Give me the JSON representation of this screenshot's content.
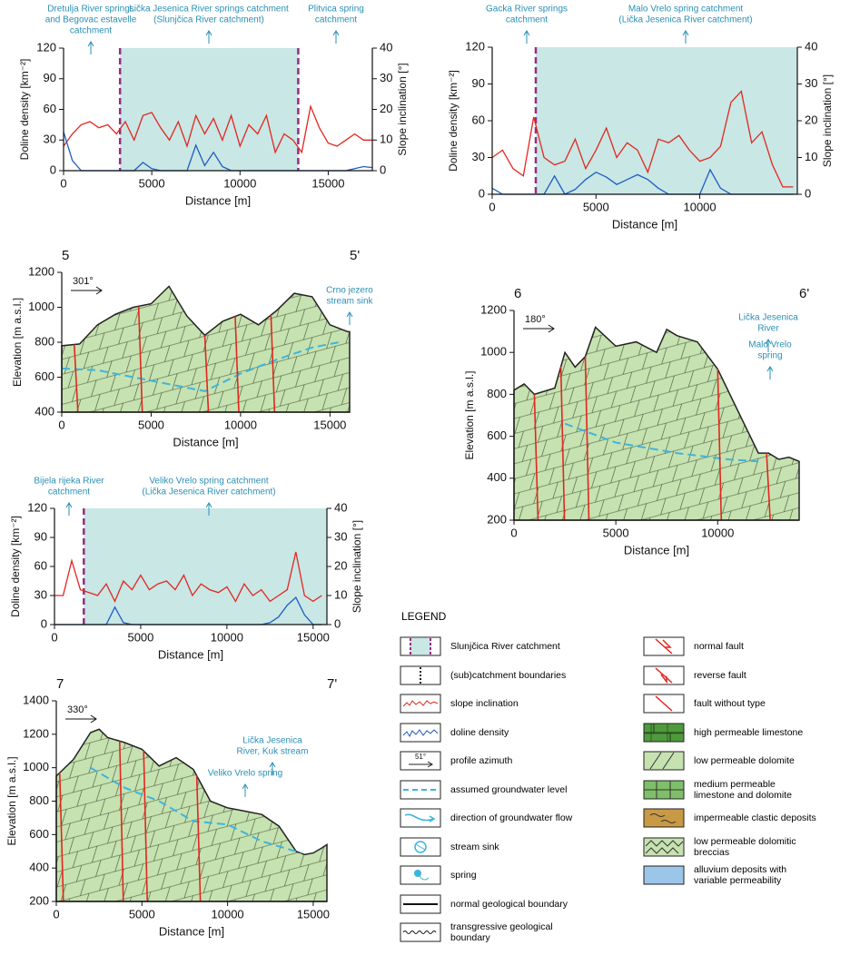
{
  "chart_data": [
    {
      "type": "line",
      "xlabel": "Distance [m]",
      "ylabel": "Doline density [km⁻²]",
      "y2label": "Slope inclination [°]",
      "xlim": [
        0,
        17500
      ],
      "xticks": [
        0,
        5000,
        10000,
        15000
      ],
      "ylim": [
        0,
        120
      ],
      "yticks": [
        0,
        30,
        60,
        90,
        120
      ],
      "y2lim": [
        0,
        40
      ],
      "y2ticks": [
        0,
        10,
        20,
        30,
        40
      ],
      "boundaries": [
        3200,
        13300
      ],
      "annotations": [
        {
          "lines": [
            "Dretulja River springs",
            "and Begovac estavelle",
            "catchment"
          ]
        },
        {
          "lines": [
            "Lička Jesenica River springs catchment",
            "(Slunjčica River catchment)"
          ]
        },
        {
          "lines": [
            "Plitvica spring",
            "catchment"
          ]
        }
      ],
      "series": [
        {
          "color": "#e3261f",
          "axis": "y2",
          "x": [
            0,
            500,
            1000,
            1500,
            2000,
            2500,
            3000,
            3500,
            4000,
            4500,
            5000,
            5500,
            6000,
            6500,
            7000,
            7500,
            8000,
            8500,
            9000,
            9500,
            10000,
            10500,
            11000,
            11500,
            12000,
            12500,
            13000,
            13500,
            14000,
            14500,
            15000,
            15500,
            16000,
            16500,
            17000,
            17500
          ],
          "values": [
            8,
            12,
            15,
            16,
            14,
            15,
            12,
            16,
            10,
            18,
            19,
            14,
            10,
            16,
            8,
            18,
            12,
            17,
            10,
            18,
            8,
            15,
            12,
            18,
            6,
            12,
            10,
            6,
            21,
            14,
            9,
            8,
            10,
            12,
            10,
            10
          ]
        },
        {
          "color": "#1f5cbf",
          "x": [
            0,
            500,
            1000,
            1500,
            2000,
            2500,
            3000,
            3500,
            4000,
            4500,
            5000,
            5500,
            6000,
            6500,
            7000,
            7500,
            8000,
            8500,
            9000,
            9500,
            10000,
            10500,
            11000,
            11500,
            12000,
            12500,
            13000,
            13500,
            14000,
            14500,
            15000,
            15500,
            16000,
            16500,
            17000,
            17500
          ],
          "values": [
            38,
            10,
            0,
            0,
            0,
            0,
            0,
            0,
            0,
            8,
            2,
            0,
            0,
            0,
            0,
            25,
            5,
            18,
            4,
            0,
            0,
            0,
            0,
            0,
            0,
            0,
            0,
            0,
            0,
            0,
            0,
            0,
            0,
            2,
            4,
            3
          ]
        }
      ]
    },
    {
      "type": "line",
      "xlabel": "Distance [m]",
      "ylabel": "Doline density [km⁻²]",
      "y2label": "Slope inclination [°]",
      "xlim": [
        0,
        14700
      ],
      "xticks": [
        0,
        5000,
        10000
      ],
      "ylim": [
        0,
        120
      ],
      "yticks": [
        0,
        30,
        60,
        90,
        120
      ],
      "y2lim": [
        0,
        40
      ],
      "y2ticks": [
        0,
        10,
        20,
        30,
        40
      ],
      "boundaries": [
        2100
      ],
      "annotations": [
        {
          "lines": [
            "Gacka River springs",
            "catchment"
          ]
        },
        {
          "lines": [
            "Malo Vrelo spring catchment",
            "(Lička Jesenica River catchment)"
          ]
        }
      ],
      "series": [
        {
          "color": "#e3261f",
          "axis": "y2",
          "x": [
            0,
            500,
            1000,
            1500,
            2000,
            2500,
            3000,
            3500,
            4000,
            4500,
            5000,
            5500,
            6000,
            6500,
            7000,
            7500,
            8000,
            8500,
            9000,
            9500,
            10000,
            10500,
            11000,
            11500,
            12000,
            12500,
            13000,
            13500,
            14000,
            14500
          ],
          "values": [
            10,
            12,
            7,
            5,
            21,
            10,
            8,
            9,
            15,
            7,
            12,
            18,
            10,
            14,
            12,
            6,
            15,
            14,
            16,
            12,
            9,
            10,
            13,
            25,
            28,
            14,
            17,
            8,
            2,
            2
          ]
        },
        {
          "color": "#1f5cbf",
          "x": [
            0,
            500,
            1000,
            1500,
            2000,
            2500,
            3000,
            3500,
            4000,
            4500,
            5000,
            5500,
            6000,
            6500,
            7000,
            7500,
            8000,
            8500,
            9000,
            9500,
            10000,
            10500,
            11000,
            11500,
            12000,
            12500,
            13000,
            13500,
            14000,
            14500
          ],
          "values": [
            5,
            0,
            0,
            0,
            0,
            0,
            15,
            0,
            4,
            12,
            18,
            14,
            8,
            12,
            16,
            12,
            5,
            0,
            0,
            0,
            0,
            20,
            5,
            0,
            0,
            0,
            0,
            0,
            0,
            0
          ]
        }
      ]
    },
    {
      "type": "area",
      "xlabel": "Distance [m]",
      "ylabel": "Elevation [m a.s.l.]",
      "start_label": "5",
      "end_label": "5'",
      "azimuth": "301°",
      "xlim": [
        0,
        16100
      ],
      "xticks": [
        0,
        5000,
        10000,
        15000
      ],
      "ylim": [
        400,
        1200
      ],
      "yticks": [
        400,
        600,
        800,
        1000,
        1200
      ],
      "faults": [
        700,
        4300,
        8000,
        9700,
        11700
      ],
      "annotations": [
        {
          "lines": [
            "Crno jezero",
            "stream sink"
          ]
        }
      ],
      "series": [
        {
          "color": "#c6e2b0",
          "x": [
            0,
            1000,
            2000,
            3000,
            4000,
            5000,
            6000,
            7000,
            8000,
            9000,
            10000,
            11000,
            12000,
            13000,
            14000,
            15000,
            16000,
            16100
          ],
          "values": [
            780,
            790,
            900,
            960,
            1000,
            1020,
            1120,
            950,
            840,
            920,
            960,
            900,
            980,
            1080,
            1060,
            900,
            860,
            860
          ]
        },
        {
          "color": "#3cb4e0",
          "dashed": true,
          "x": [
            0,
            2000,
            4000,
            6000,
            8000,
            10000,
            12000,
            14000,
            15500
          ],
          "values": [
            650,
            640,
            600,
            560,
            520,
            620,
            700,
            770,
            800
          ]
        }
      ]
    },
    {
      "type": "area",
      "xlabel": "Distance [m]",
      "ylabel": "Elevation [m a.s.l.]",
      "start_label": "6",
      "end_label": "6'",
      "azimuth": "180°",
      "xlim": [
        0,
        14000
      ],
      "xticks": [
        0,
        5000,
        10000
      ],
      "ylim": [
        200,
        1200
      ],
      "yticks": [
        200,
        400,
        600,
        800,
        1000,
        1200
      ],
      "faults": [
        1000,
        2300,
        3500,
        10000,
        12400
      ],
      "annotations": [
        {
          "lines": [
            "Lička Jesenica",
            "River"
          ]
        },
        {
          "lines": [
            "Malo Vrelo",
            "spring"
          ]
        }
      ],
      "series": [
        {
          "color": "#c6e2b0",
          "x": [
            0,
            500,
            1000,
            2000,
            2500,
            3000,
            3500,
            4000,
            5000,
            6000,
            7000,
            7500,
            8000,
            9000,
            10000,
            11000,
            12000,
            12500,
            13000,
            13500,
            14000
          ],
          "values": [
            820,
            850,
            800,
            830,
            1000,
            930,
            980,
            1120,
            1030,
            1050,
            1000,
            1110,
            1080,
            1050,
            920,
            720,
            520,
            520,
            490,
            500,
            480
          ]
        },
        {
          "color": "#3cb4e0",
          "dashed": true,
          "x": [
            2500,
            5000,
            8000,
            10500,
            12000
          ],
          "values": [
            660,
            570,
            520,
            490,
            480
          ]
        }
      ]
    },
    {
      "type": "line",
      "xlabel": "Distance [m]",
      "ylabel": "Doline density [km⁻²]",
      "y2label": "Slope inclination [°]",
      "xlim": [
        0,
        15800
      ],
      "xticks": [
        0,
        5000,
        10000,
        15000
      ],
      "ylim": [
        0,
        120
      ],
      "yticks": [
        0,
        30,
        60,
        90,
        120
      ],
      "y2lim": [
        0,
        40
      ],
      "y2ticks": [
        0,
        10,
        20,
        30,
        40
      ],
      "boundaries": [
        1700
      ],
      "annotations": [
        {
          "lines": [
            "Bijela rijeka River",
            "catchment"
          ]
        },
        {
          "lines": [
            "Veliko Vrelo spring catchment",
            "(Lička Jesenica River catchment)"
          ]
        }
      ],
      "series": [
        {
          "color": "#e3261f",
          "axis": "y2",
          "x": [
            0,
            500,
            1000,
            1500,
            2000,
            2500,
            3000,
            3500,
            4000,
            4500,
            5000,
            5500,
            6000,
            6500,
            7000,
            7500,
            8000,
            8500,
            9000,
            9500,
            10000,
            10500,
            11000,
            11500,
            12000,
            12500,
            13000,
            13500,
            14000,
            14500,
            15000,
            15500
          ],
          "values": [
            10,
            10,
            22,
            12,
            11,
            10,
            14,
            8,
            15,
            12,
            17,
            12,
            14,
            15,
            12,
            17,
            10,
            14,
            12,
            11,
            13,
            8,
            14,
            10,
            12,
            8,
            10,
            12,
            25,
            10,
            8,
            10
          ]
        },
        {
          "color": "#1f5cbf",
          "x": [
            0,
            500,
            1000,
            1500,
            2000,
            2500,
            3000,
            3500,
            4000,
            4500,
            5000,
            5500,
            6000,
            6500,
            7000,
            7500,
            8000,
            8500,
            9000,
            9500,
            10000,
            10500,
            11000,
            11500,
            12000,
            12500,
            13000,
            13500,
            14000,
            14500,
            15000,
            15500
          ],
          "values": [
            0,
            0,
            0,
            0,
            0,
            0,
            0,
            18,
            2,
            0,
            0,
            0,
            0,
            0,
            0,
            0,
            0,
            0,
            0,
            0,
            0,
            0,
            0,
            0,
            0,
            2,
            8,
            20,
            28,
            10,
            0,
            0
          ]
        }
      ]
    },
    {
      "type": "area",
      "xlabel": "Distance [m]",
      "ylabel": "Elevation [m a.s.l.]",
      "start_label": "7",
      "end_label": "7'",
      "azimuth": "330°",
      "xlim": [
        0,
        15800
      ],
      "xticks": [
        0,
        5000,
        10000,
        15000
      ],
      "ylim": [
        200,
        1400
      ],
      "yticks": [
        200,
        400,
        600,
        800,
        1000,
        1200,
        1400
      ],
      "faults": [
        200,
        3700,
        5100,
        8200
      ],
      "annotations": [
        {
          "lines": [
            "Lička Jesenica",
            "River, Kuk stream"
          ]
        },
        {
          "lines": [
            "Veliko Vrelo spring"
          ]
        }
      ],
      "series": [
        {
          "color": "#c6e2b0",
          "x": [
            0,
            1000,
            2000,
            2500,
            3000,
            4000,
            5000,
            6000,
            7000,
            8000,
            9000,
            10000,
            11000,
            12000,
            13000,
            14000,
            14500,
            15000,
            15500,
            15800
          ],
          "values": [
            950,
            1050,
            1210,
            1230,
            1180,
            1150,
            1110,
            1010,
            1060,
            990,
            800,
            760,
            740,
            720,
            650,
            500,
            480,
            490,
            520,
            540
          ]
        },
        {
          "color": "#3cb4e0",
          "dashed": true,
          "x": [
            2000,
            4000,
            6000,
            8000,
            10000,
            12000,
            14300
          ],
          "values": [
            1000,
            880,
            800,
            680,
            660,
            560,
            490
          ]
        }
      ]
    }
  ],
  "legend": {
    "title": "LEGEND",
    "azimuth_example": "51°",
    "items": [
      "Slunjčica River catchment",
      "(sub)catchment boundaries",
      "slope inclination",
      "doline density",
      "profile azimuth",
      "assumed groundwater level",
      "direction of groundwater flow",
      "stream sink",
      "spring",
      "normal geological boundary",
      "transgressive geological boundary",
      "normal fault",
      "reverse fault",
      "fault without type",
      "high permeable limestone",
      "low permeable dolomite",
      "medium permeable limestone and dolomite",
      "impermeable clastic deposits",
      "low permeable dolomitic breccias",
      "alluvium deposits with variable permeability"
    ]
  }
}
